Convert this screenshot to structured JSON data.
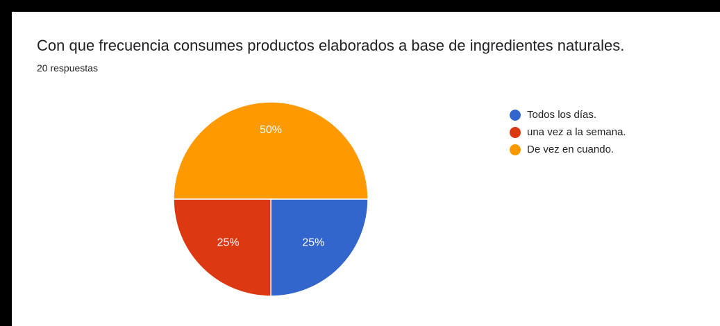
{
  "chart_data": {
    "type": "pie",
    "title": "Con que frecuencia consumes productos elaborados a base de ingredientes naturales.",
    "subtitle": "20 respuestas",
    "categories": [
      "Todos los días.",
      "una vez a la semana.",
      "De vez en cuando."
    ],
    "values": [
      25,
      25,
      50
    ],
    "labels": [
      "25%",
      "25%",
      "50%"
    ],
    "colors": [
      "#3366cc",
      "#dc3912",
      "#ff9900"
    ],
    "legend": "right"
  }
}
